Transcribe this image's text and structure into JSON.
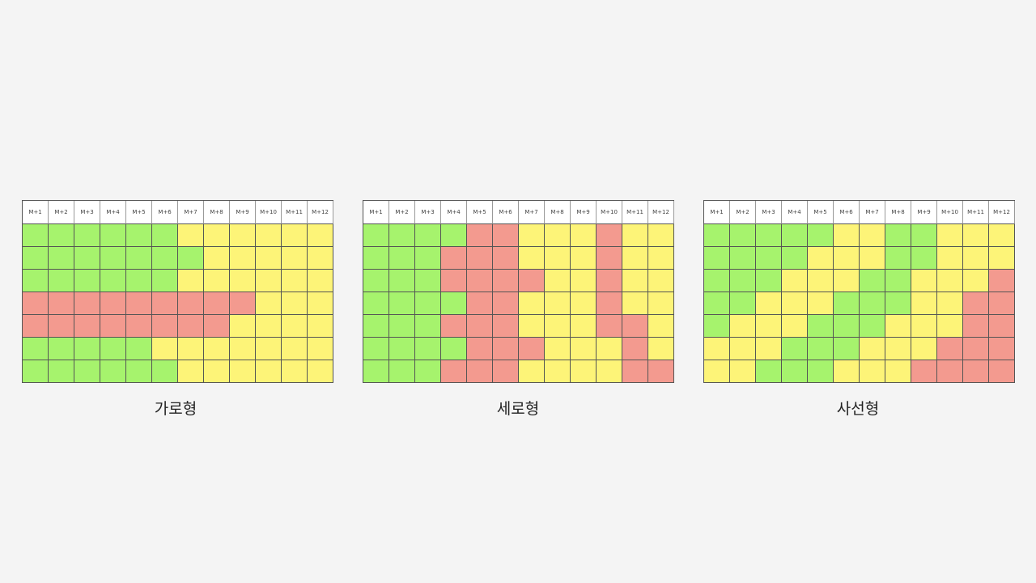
{
  "colors": {
    "G": "#a6f36d",
    "Y": "#fdf478",
    "R": "#f39a8f"
  },
  "chart_data": [
    {
      "type": "heatmap",
      "title": "가로형",
      "columns": [
        "M+1",
        "M+2",
        "M+3",
        "M+4",
        "M+5",
        "M+6",
        "M+7",
        "M+8",
        "M+9",
        "M+10",
        "M+11",
        "M+12"
      ],
      "rows": [
        [
          "G",
          "G",
          "G",
          "G",
          "G",
          "G",
          "Y",
          "Y",
          "Y",
          "Y",
          "Y",
          "Y"
        ],
        [
          "G",
          "G",
          "G",
          "G",
          "G",
          "G",
          "G",
          "Y",
          "Y",
          "Y",
          "Y",
          "Y"
        ],
        [
          "G",
          "G",
          "G",
          "G",
          "G",
          "G",
          "Y",
          "Y",
          "Y",
          "Y",
          "Y",
          "Y"
        ],
        [
          "R",
          "R",
          "R",
          "R",
          "R",
          "R",
          "R",
          "R",
          "R",
          "Y",
          "Y",
          "Y"
        ],
        [
          "R",
          "R",
          "R",
          "R",
          "R",
          "R",
          "R",
          "R",
          "Y",
          "Y",
          "Y",
          "Y"
        ],
        [
          "G",
          "G",
          "G",
          "G",
          "G",
          "Y",
          "Y",
          "Y",
          "Y",
          "Y",
          "Y",
          "Y"
        ],
        [
          "G",
          "G",
          "G",
          "G",
          "G",
          "G",
          "Y",
          "Y",
          "Y",
          "Y",
          "Y",
          "Y"
        ]
      ]
    },
    {
      "type": "heatmap",
      "title": "세로형",
      "columns": [
        "M+1",
        "M+2",
        "M+3",
        "M+4",
        "M+5",
        "M+6",
        "M+7",
        "M+8",
        "M+9",
        "M+10",
        "M+11",
        "M+12"
      ],
      "rows": [
        [
          "G",
          "G",
          "G",
          "G",
          "R",
          "R",
          "Y",
          "Y",
          "Y",
          "R",
          "Y",
          "Y"
        ],
        [
          "G",
          "G",
          "G",
          "R",
          "R",
          "R",
          "Y",
          "Y",
          "Y",
          "R",
          "Y",
          "Y"
        ],
        [
          "G",
          "G",
          "G",
          "R",
          "R",
          "R",
          "R",
          "Y",
          "Y",
          "R",
          "Y",
          "Y"
        ],
        [
          "G",
          "G",
          "G",
          "G",
          "R",
          "R",
          "Y",
          "Y",
          "Y",
          "R",
          "Y",
          "Y"
        ],
        [
          "G",
          "G",
          "G",
          "R",
          "R",
          "R",
          "Y",
          "Y",
          "Y",
          "R",
          "R",
          "Y"
        ],
        [
          "G",
          "G",
          "G",
          "G",
          "R",
          "R",
          "R",
          "Y",
          "Y",
          "Y",
          "R",
          "Y"
        ],
        [
          "G",
          "G",
          "G",
          "R",
          "R",
          "R",
          "Y",
          "Y",
          "Y",
          "Y",
          "R",
          "R"
        ]
      ]
    },
    {
      "type": "heatmap",
      "title": "사선형",
      "columns": [
        "M+1",
        "M+2",
        "M+3",
        "M+4",
        "M+5",
        "M+6",
        "M+7",
        "M+8",
        "M+9",
        "M+10",
        "M+11",
        "M+12"
      ],
      "rows": [
        [
          "G",
          "G",
          "G",
          "G",
          "G",
          "Y",
          "Y",
          "G",
          "G",
          "Y",
          "Y",
          "Y"
        ],
        [
          "G",
          "G",
          "G",
          "G",
          "Y",
          "Y",
          "Y",
          "G",
          "G",
          "Y",
          "Y",
          "Y"
        ],
        [
          "G",
          "G",
          "G",
          "Y",
          "Y",
          "Y",
          "G",
          "G",
          "Y",
          "Y",
          "Y",
          "R"
        ],
        [
          "G",
          "G",
          "Y",
          "Y",
          "Y",
          "G",
          "G",
          "G",
          "Y",
          "Y",
          "R",
          "R"
        ],
        [
          "G",
          "Y",
          "Y",
          "Y",
          "G",
          "G",
          "G",
          "Y",
          "Y",
          "Y",
          "R",
          "R"
        ],
        [
          "Y",
          "Y",
          "Y",
          "G",
          "G",
          "G",
          "Y",
          "Y",
          "Y",
          "R",
          "R",
          "R"
        ],
        [
          "Y",
          "Y",
          "G",
          "G",
          "G",
          "Y",
          "Y",
          "Y",
          "R",
          "R",
          "R",
          "R"
        ]
      ]
    }
  ]
}
